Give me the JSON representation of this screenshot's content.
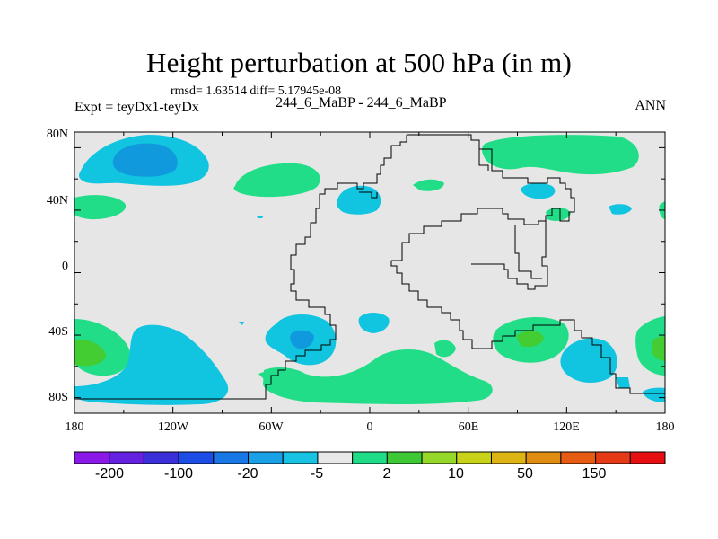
{
  "title": "Height perturbation at 500 hPa (in m)",
  "stats_text": "rmsd= 1.63514 diff= 5.17945e-08",
  "left_label": "Expt = teyDx1-teyDx",
  "center_label": "244_6_MaBP - 244_6_MaBP",
  "right_label": "ANN",
  "colors": {
    "land_outline": "#000000",
    "background_field": "#e6e6e6",
    "pos_light": "#22dd88",
    "pos_mid": "#44cc33",
    "neg_light": "#11c4e0",
    "neg_mid": "#1199dd"
  },
  "map": {
    "y_ticks": [
      "80N",
      "40N",
      "0",
      "40S",
      "80S"
    ],
    "x_ticks": [
      "180",
      "120W",
      "60W",
      "0",
      "60E",
      "120E",
      "180"
    ]
  },
  "colorbar": {
    "colors": [
      "#8a18e6",
      "#6422e0",
      "#3a2fd8",
      "#1c4ee6",
      "#1a78e6",
      "#1aa0e6",
      "#18c2e2",
      "#e8e8e8",
      "#1fdc88",
      "#3ec836",
      "#96d82a",
      "#c8d218",
      "#dcb414",
      "#e08c10",
      "#e65c12",
      "#e63a16",
      "#e60e10"
    ],
    "labels": [
      "-200",
      "-100",
      "-20",
      "-5",
      "2",
      "10",
      "50",
      "150"
    ]
  }
}
